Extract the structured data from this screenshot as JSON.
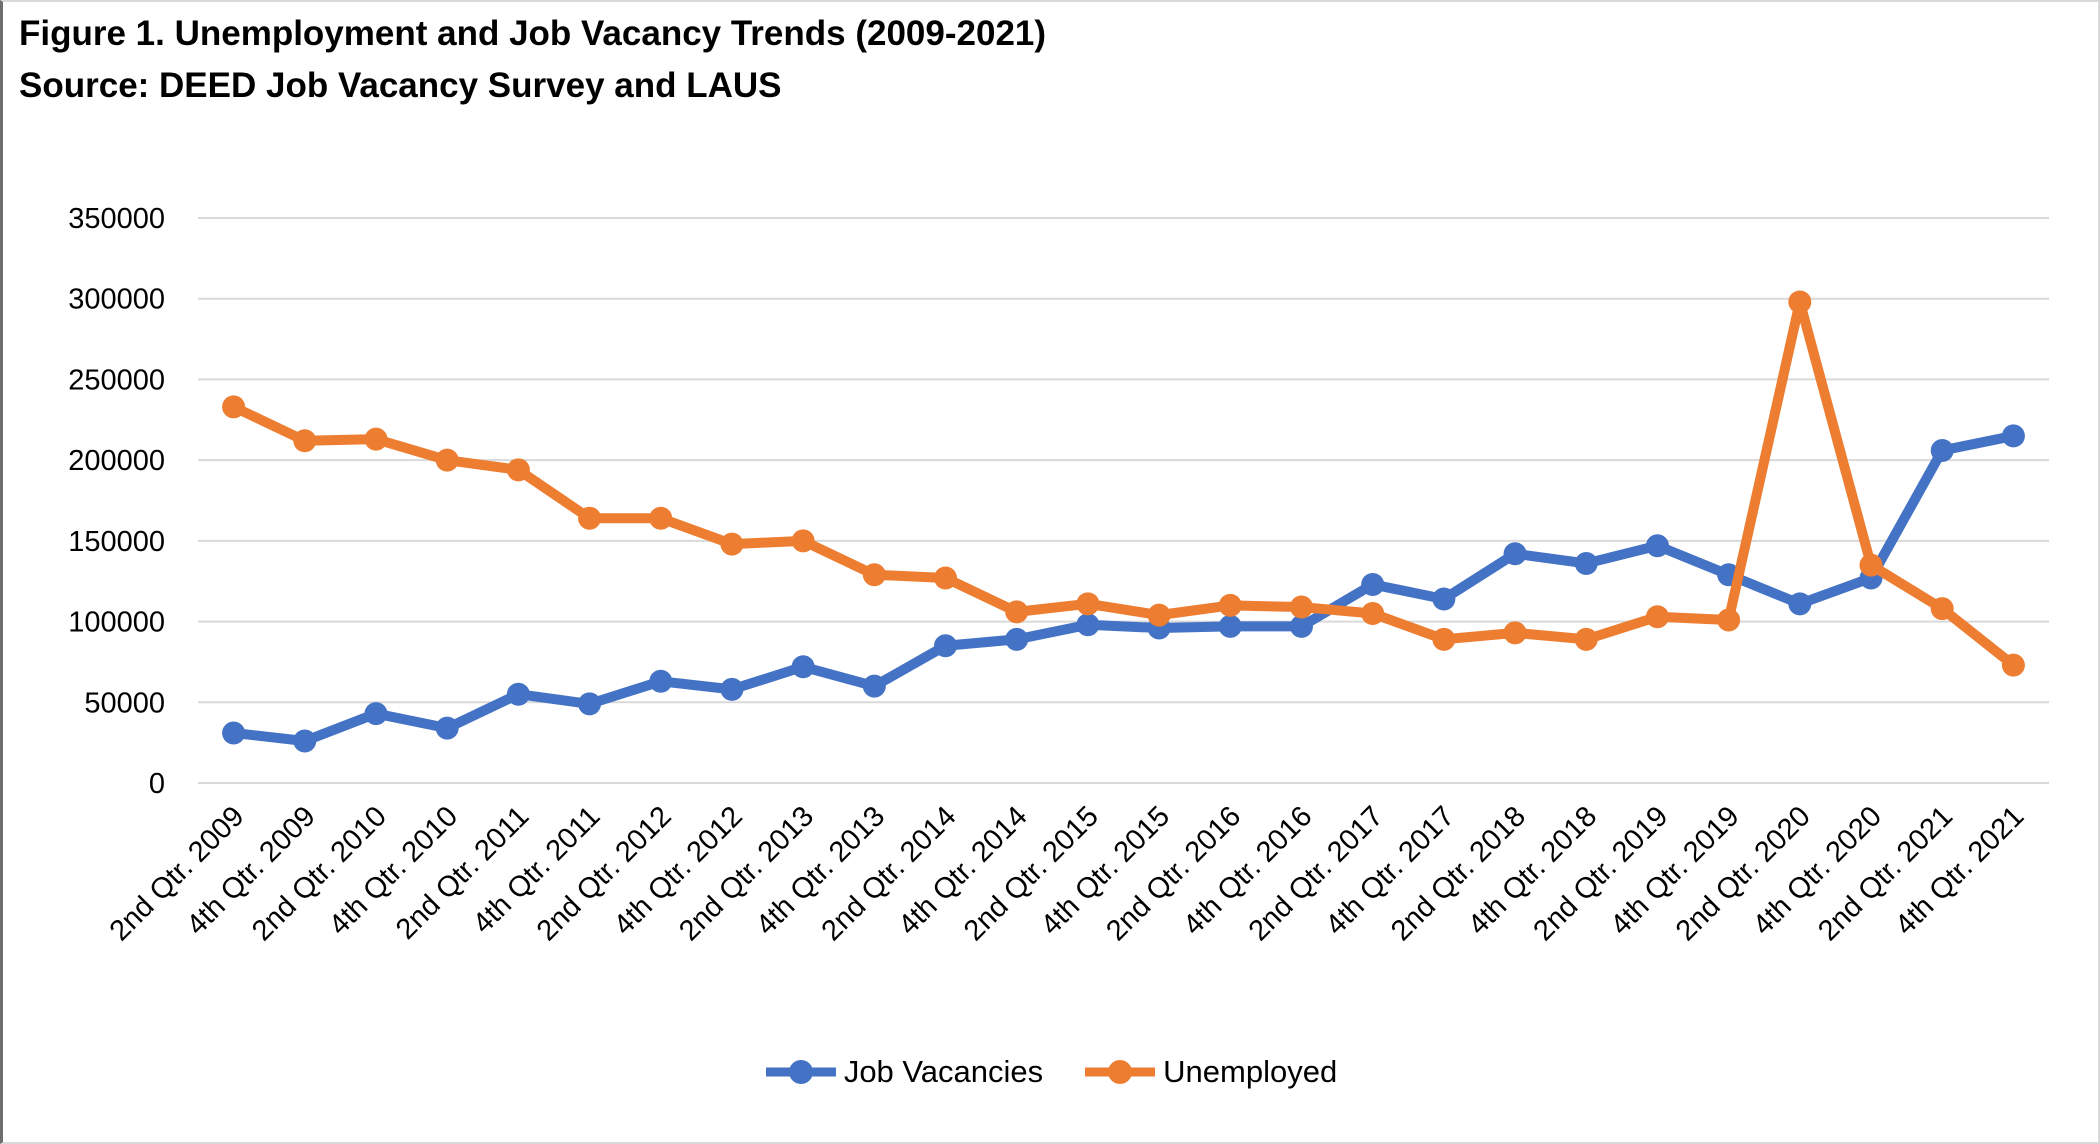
{
  "header": {
    "title": "Figure 1. Unemployment and Job Vacancy Trends (2009-2021)",
    "source": "Source: DEED Job Vacancy Survey and LAUS"
  },
  "chart_data": {
    "type": "line",
    "title": "Figure 1. Unemployment and Job Vacancy Trends (2009-2021)",
    "subtitle": "Source: DEED Job Vacancy Survey and LAUS",
    "xlabel": "",
    "ylabel": "",
    "ylim": [
      0,
      350000
    ],
    "ytick_step": 50000,
    "y_tick_labels": [
      "0",
      "50000",
      "100000",
      "150000",
      "200000",
      "250000",
      "300000",
      "350000"
    ],
    "grid": "horizontal",
    "legend_position": "bottom",
    "categories": [
      "2nd Qtr. 2009",
      "4th Qtr. 2009",
      "2nd Qtr. 2010",
      "4th Qtr. 2010",
      "2nd Qtr. 2011",
      "4th Qtr. 2011",
      "2nd Qtr. 2012",
      "4th Qtr. 2012",
      "2nd Qtr. 2013",
      "4th Qtr. 2013",
      "2nd Qtr. 2014",
      "4th Qtr. 2014",
      "2nd Qtr. 2015",
      "4th Qtr. 2015",
      "2nd Qtr. 2016",
      "4th Qtr. 2016",
      "2nd Qtr. 2017",
      "4th Qtr. 2017",
      "2nd Qtr. 2018",
      "4th Qtr. 2018",
      "2nd Qtr. 2019",
      "4th Qtr. 2019",
      "2nd Qtr. 2020",
      "4th Qtr. 2020",
      "2nd Qtr. 2021",
      "4th Qtr. 2021"
    ],
    "series": [
      {
        "id": "job-vacancies",
        "name": "Job Vacancies",
        "color": "#4472C4",
        "values": [
          31000,
          26000,
          43000,
          34000,
          55000,
          49000,
          63000,
          58000,
          72000,
          60000,
          85000,
          89000,
          98000,
          96000,
          97000,
          97000,
          123000,
          114000,
          142000,
          136000,
          147000,
          129000,
          111000,
          127000,
          206000,
          215000
        ]
      },
      {
        "id": "unemployed",
        "name": "Unemployed",
        "color": "#ED7D31",
        "values": [
          233000,
          212000,
          213000,
          200000,
          194000,
          164000,
          164000,
          148000,
          150000,
          129000,
          127000,
          106000,
          111000,
          104000,
          110000,
          109000,
          105000,
          89000,
          93000,
          89000,
          103000,
          101000,
          298000,
          135000,
          108000,
          73000
        ]
      }
    ],
    "colors": {
      "gridline": "#D9D9D9",
      "tick_text": "#000000"
    }
  }
}
